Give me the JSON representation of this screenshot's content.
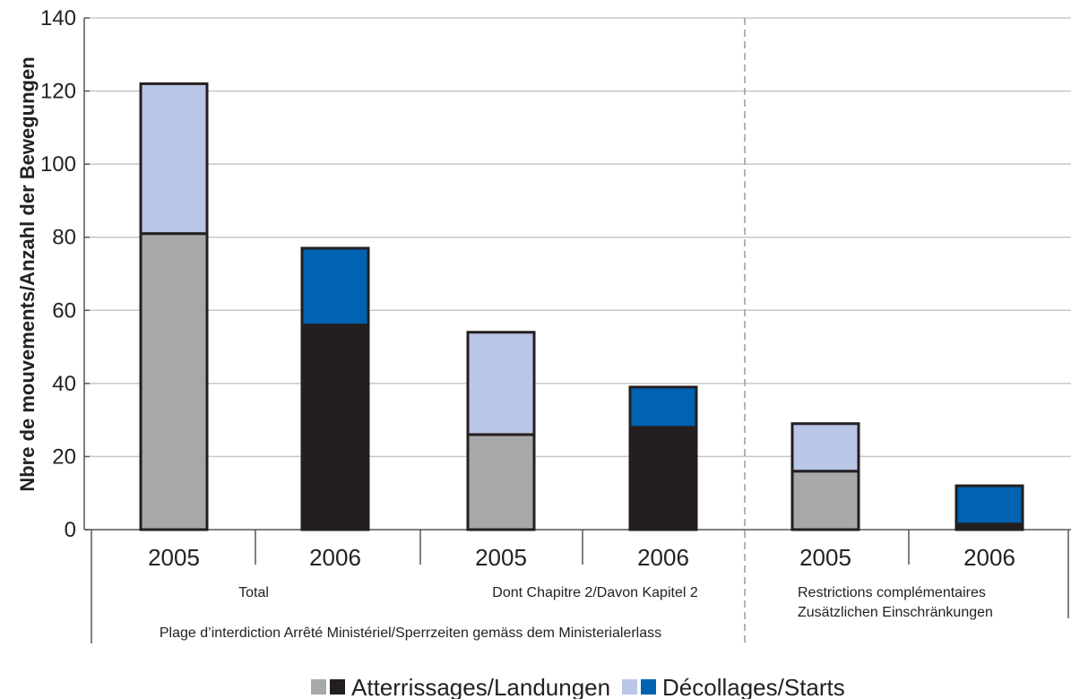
{
  "chart_data": {
    "type": "bar",
    "stacked": true,
    "ylabel": "Nbre de mouvements/Anzahl der Bewegungen",
    "ylim": [
      0,
      140
    ],
    "yticks": [
      0,
      20,
      40,
      60,
      80,
      100,
      120,
      140
    ],
    "grid": true,
    "legend_position": "bottom",
    "groups": [
      {
        "label_lines": [
          "Total"
        ],
        "categories": [
          "2005",
          "2006"
        ]
      },
      {
        "label_lines": [
          "Dont Chapitre 2/Davon Kapitel 2"
        ],
        "categories": [
          "2005",
          "2006"
        ]
      },
      {
        "label_lines": [
          "Restrictions complémentaires",
          "Zusätzlichen Einschränkungen"
        ],
        "categories": [
          "2005",
          "2006"
        ]
      }
    ],
    "outer_group_label": "Plage d’interdiction Arrêté Ministériel/Sperrzeiten gemäss dem Ministerialerlass",
    "categories": [
      "2005",
      "2006",
      "2005",
      "2006",
      "2005",
      "2006"
    ],
    "series": [
      {
        "name": "Atterrissages/Landungen",
        "values": [
          81,
          56,
          26,
          28,
          16,
          1.5
        ],
        "colors": [
          "#a7a8aa",
          "#231f20",
          "#a7a8aa",
          "#231f20",
          "#a7a8aa",
          "#231f20"
        ]
      },
      {
        "name": "Décollages/Starts",
        "values": [
          41,
          21,
          28,
          11,
          13,
          10.5
        ],
        "colors": [
          "#b9c6e6",
          "#0062b1",
          "#b9c6e6",
          "#0062b1",
          "#b9c6e6",
          "#0062b1"
        ]
      }
    ],
    "legend": [
      {
        "label": "Atterrissages/Landungen",
        "swatches": [
          "#a7a8aa",
          "#231f20"
        ]
      },
      {
        "label": "Décollages/Starts",
        "swatches": [
          "#b9c6e6",
          "#0062b1"
        ]
      }
    ]
  }
}
